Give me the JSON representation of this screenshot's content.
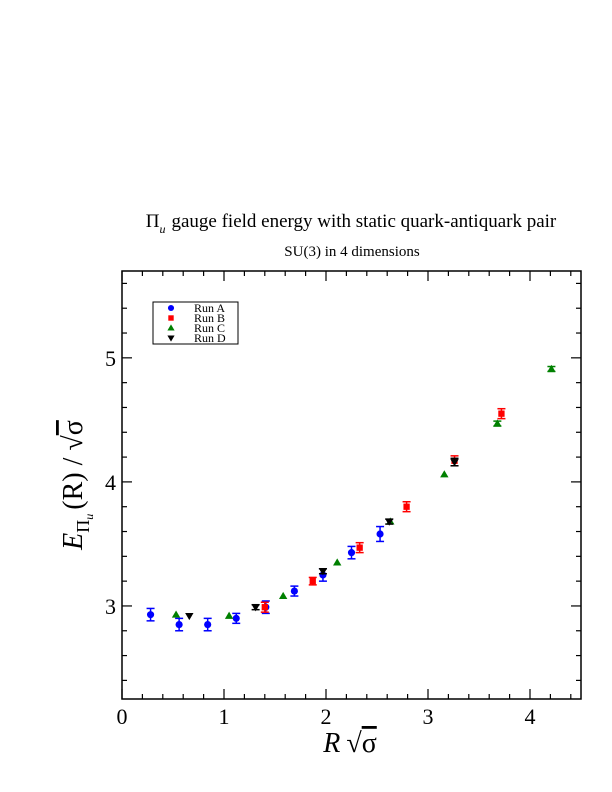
{
  "chart_data": {
    "type": "scatter",
    "title_symbol": "Π",
    "title_symbol_sub": "u",
    "title_text": "gauge field energy with static quark-antiquark pair",
    "subtitle": "SU(3) in 4 dimensions",
    "xlabel": {
      "var": "R",
      "sqrt": "√",
      "sigma": "σ"
    },
    "ylabel": {
      "E": "E",
      "sub_pi": "Π",
      "sub_u": "u",
      "arg": "(R) / ",
      "sqrt": "√",
      "sigma": "σ"
    },
    "xlim": [
      0,
      4.5
    ],
    "ylim": [
      2.25,
      5.7
    ],
    "x_ticks": [
      "0",
      "1",
      "2",
      "3",
      "4"
    ],
    "y_ticks": [
      "3",
      "4",
      "5"
    ],
    "grid": false,
    "legend_position": "top-left",
    "series": [
      {
        "name": "Run A",
        "marker": "circle",
        "color": "#0000ff",
        "points": [
          {
            "x": 0.28,
            "y": 2.93,
            "err": 0.05
          },
          {
            "x": 0.56,
            "y": 2.85,
            "err": 0.05
          },
          {
            "x": 0.84,
            "y": 2.85,
            "err": 0.05
          },
          {
            "x": 1.12,
            "y": 2.9,
            "err": 0.04
          },
          {
            "x": 1.41,
            "y": 2.99,
            "err": 0.05
          },
          {
            "x": 1.69,
            "y": 3.12,
            "err": 0.04
          },
          {
            "x": 1.97,
            "y": 3.25,
            "err": 0.05
          },
          {
            "x": 2.25,
            "y": 3.43,
            "err": 0.05
          },
          {
            "x": 2.53,
            "y": 3.58,
            "err": 0.06
          }
        ]
      },
      {
        "name": "Run B",
        "marker": "square",
        "color": "#ff0000",
        "points": [
          {
            "x": 1.4,
            "y": 2.99,
            "err": 0.04
          },
          {
            "x": 1.87,
            "y": 3.2,
            "err": 0.03
          },
          {
            "x": 2.33,
            "y": 3.47,
            "err": 0.04
          },
          {
            "x": 2.79,
            "y": 3.8,
            "err": 0.04
          },
          {
            "x": 3.26,
            "y": 4.17,
            "err": 0.04
          },
          {
            "x": 3.72,
            "y": 4.55,
            "err": 0.04
          }
        ]
      },
      {
        "name": "Run C",
        "marker": "triangle-up",
        "color": "#008000",
        "points": [
          {
            "x": 0.53,
            "y": 2.93,
            "err": 0.01
          },
          {
            "x": 1.05,
            "y": 2.92,
            "err": 0.01
          },
          {
            "x": 1.58,
            "y": 3.08,
            "err": 0.01
          },
          {
            "x": 2.11,
            "y": 3.35,
            "err": 0.01
          },
          {
            "x": 2.63,
            "y": 3.68,
            "err": 0.01
          },
          {
            "x": 3.16,
            "y": 4.06,
            "err": 0.01
          },
          {
            "x": 3.68,
            "y": 4.47,
            "err": 0.02
          },
          {
            "x": 4.21,
            "y": 4.91,
            "err": 0.02
          }
        ]
      },
      {
        "name": "Run D",
        "marker": "triangle-down",
        "color": "#000000",
        "points": [
          {
            "x": 0.66,
            "y": 2.92,
            "err": 0.01
          },
          {
            "x": 1.31,
            "y": 2.99,
            "err": 0.02
          },
          {
            "x": 1.97,
            "y": 3.28,
            "err": 0.02
          },
          {
            "x": 2.62,
            "y": 3.68,
            "err": 0.02
          },
          {
            "x": 3.26,
            "y": 4.16,
            "err": 0.03
          }
        ]
      }
    ]
  }
}
